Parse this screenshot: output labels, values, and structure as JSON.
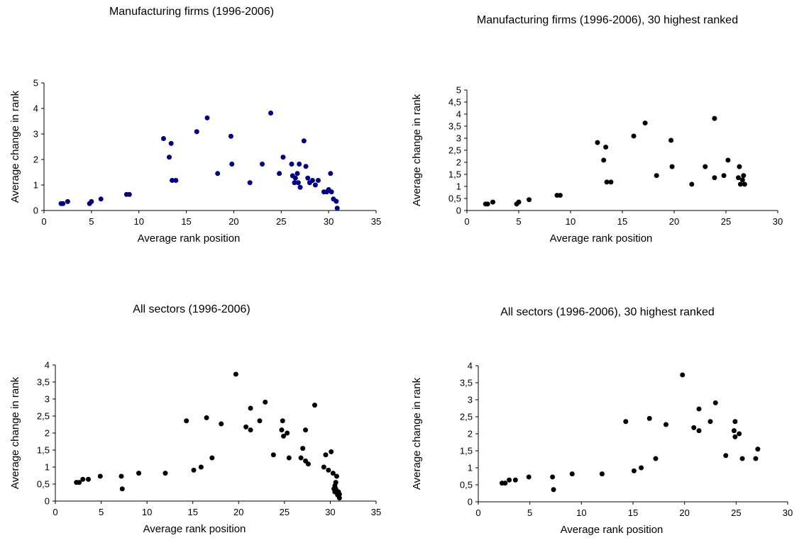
{
  "chart_data": [
    {
      "type": "scatter",
      "title": "Manufacturing firms (1996-2006)",
      "xlabel": "Average rank position",
      "ylabel": "Average change in rank",
      "xlim": [
        0,
        35
      ],
      "ylim": [
        0,
        5
      ],
      "xticks": [
        "0",
        "5",
        "10",
        "15",
        "20",
        "25",
        "30",
        "35"
      ],
      "yticks": [
        "0",
        "1",
        "2",
        "3",
        "4",
        "5"
      ],
      "grid": false,
      "marker_color": "#000080",
      "points": [
        [
          1.8,
          0.27
        ],
        [
          2.0,
          0.27
        ],
        [
          2.5,
          0.35
        ],
        [
          4.8,
          0.27
        ],
        [
          5.0,
          0.35
        ],
        [
          6.0,
          0.45
        ],
        [
          8.7,
          0.63
        ],
        [
          9.0,
          0.63
        ],
        [
          12.6,
          2.82
        ],
        [
          13.2,
          2.09
        ],
        [
          13.4,
          2.63
        ],
        [
          13.5,
          1.18
        ],
        [
          13.9,
          1.18
        ],
        [
          16.1,
          3.09
        ],
        [
          17.2,
          3.63
        ],
        [
          18.3,
          1.45
        ],
        [
          19.7,
          2.91
        ],
        [
          19.8,
          1.82
        ],
        [
          21.7,
          1.09
        ],
        [
          23.0,
          1.82
        ],
        [
          23.9,
          3.82
        ],
        [
          24.8,
          1.45
        ],
        [
          25.2,
          2.09
        ],
        [
          26.1,
          1.82
        ],
        [
          26.2,
          1.36
        ],
        [
          26.4,
          1.09
        ],
        [
          26.5,
          1.27
        ],
        [
          26.7,
          1.45
        ],
        [
          26.8,
          1.09
        ],
        [
          26.9,
          1.82
        ],
        [
          27.0,
          0.91
        ],
        [
          27.4,
          2.73
        ],
        [
          27.6,
          1.73
        ],
        [
          27.8,
          1.27
        ],
        [
          28.0,
          1.09
        ],
        [
          28.3,
          1.18
        ],
        [
          28.6,
          1.0
        ],
        [
          28.9,
          1.18
        ],
        [
          29.5,
          0.73
        ],
        [
          29.8,
          0.73
        ],
        [
          30.0,
          0.82
        ],
        [
          30.2,
          1.45
        ],
        [
          30.3,
          0.73
        ],
        [
          30.5,
          0.45
        ],
        [
          30.8,
          0.36
        ],
        [
          30.9,
          0.09
        ]
      ]
    },
    {
      "type": "scatter",
      "title": "Manufacturing firms (1996-2006), 30 highest ranked",
      "xlabel": "Average rank position",
      "ylabel": "Average change in rank",
      "xlim": [
        0,
        30
      ],
      "ylim": [
        0,
        5
      ],
      "xticks": [
        "0",
        "5",
        "10",
        "15",
        "20",
        "25",
        "30"
      ],
      "yticks": [
        "0",
        "0,5",
        "1",
        "1,5",
        "2",
        "2,5",
        "3",
        "3,5",
        "4",
        "4,5",
        "5"
      ],
      "grid": false,
      "marker_color": "#000000",
      "points": [
        [
          1.8,
          0.27
        ],
        [
          2.0,
          0.27
        ],
        [
          2.5,
          0.35
        ],
        [
          4.8,
          0.27
        ],
        [
          5.0,
          0.35
        ],
        [
          6.0,
          0.45
        ],
        [
          8.7,
          0.63
        ],
        [
          9.0,
          0.63
        ],
        [
          12.6,
          2.82
        ],
        [
          13.2,
          2.09
        ],
        [
          13.4,
          2.63
        ],
        [
          13.5,
          1.18
        ],
        [
          13.9,
          1.18
        ],
        [
          16.1,
          3.09
        ],
        [
          17.2,
          3.63
        ],
        [
          18.3,
          1.45
        ],
        [
          19.7,
          2.91
        ],
        [
          19.8,
          1.82
        ],
        [
          21.7,
          1.09
        ],
        [
          23.0,
          1.82
        ],
        [
          23.9,
          3.82
        ],
        [
          23.9,
          1.36
        ],
        [
          24.8,
          1.45
        ],
        [
          25.2,
          2.09
        ],
        [
          26.2,
          1.36
        ],
        [
          26.3,
          1.82
        ],
        [
          26.4,
          1.09
        ],
        [
          26.6,
          1.27
        ],
        [
          26.7,
          1.45
        ],
        [
          26.8,
          1.09
        ]
      ]
    },
    {
      "type": "scatter",
      "title": "All sectors (1996-2006)",
      "xlabel": "Average rank position",
      "ylabel": "Average change in rank",
      "xlim": [
        0,
        35
      ],
      "ylim": [
        0,
        4
      ],
      "xticks": [
        "0",
        "5",
        "10",
        "15",
        "20",
        "25",
        "30",
        "35"
      ],
      "yticks": [
        "0",
        "0,5",
        "1",
        "1,5",
        "2",
        "2,5",
        "3",
        "3,5",
        "4"
      ],
      "grid": false,
      "marker_color": "#000000",
      "points": [
        [
          2.3,
          0.55
        ],
        [
          2.6,
          0.55
        ],
        [
          3.0,
          0.64
        ],
        [
          3.6,
          0.64
        ],
        [
          4.9,
          0.73
        ],
        [
          7.2,
          0.73
        ],
        [
          7.3,
          0.36
        ],
        [
          9.1,
          0.82
        ],
        [
          12.0,
          0.82
        ],
        [
          14.3,
          2.36
        ],
        [
          15.1,
          0.91
        ],
        [
          15.9,
          1.0
        ],
        [
          16.5,
          2.45
        ],
        [
          17.1,
          1.27
        ],
        [
          18.1,
          2.27
        ],
        [
          19.7,
          3.73
        ],
        [
          20.8,
          2.18
        ],
        [
          21.3,
          2.09
        ],
        [
          21.3,
          2.73
        ],
        [
          22.3,
          2.36
        ],
        [
          22.9,
          2.91
        ],
        [
          23.8,
          1.36
        ],
        [
          24.7,
          2.09
        ],
        [
          24.8,
          2.36
        ],
        [
          24.9,
          1.91
        ],
        [
          25.3,
          2.0
        ],
        [
          25.5,
          1.27
        ],
        [
          26.8,
          1.27
        ],
        [
          27.0,
          1.55
        ],
        [
          27.3,
          2.09
        ],
        [
          27.3,
          1.18
        ],
        [
          27.6,
          1.09
        ],
        [
          28.3,
          2.82
        ],
        [
          29.3,
          1.0
        ],
        [
          29.5,
          1.36
        ],
        [
          29.8,
          0.91
        ],
        [
          30.1,
          1.45
        ],
        [
          30.3,
          0.82
        ],
        [
          30.4,
          0.36
        ],
        [
          30.5,
          0.45
        ],
        [
          30.5,
          0.27
        ],
        [
          30.6,
          0.55
        ],
        [
          30.6,
          0.36
        ],
        [
          30.7,
          0.73
        ],
        [
          30.8,
          0.18
        ],
        [
          30.9,
          0.27
        ],
        [
          31.0,
          0.09
        ],
        [
          31.0,
          0.2
        ]
      ]
    },
    {
      "type": "scatter",
      "title": "All sectors (1996-2006), 30 highest ranked",
      "xlabel": "Average rank position",
      "ylabel": "Average change in rank",
      "xlim": [
        0,
        30
      ],
      "ylim": [
        0,
        4
      ],
      "xticks": [
        "0",
        "5",
        "10",
        "15",
        "20",
        "25",
        "30"
      ],
      "yticks": [
        "0",
        "0,5",
        "1",
        "1,5",
        "2",
        "2,5",
        "3",
        "3,5",
        "4"
      ],
      "grid": false,
      "marker_color": "#000000",
      "points": [
        [
          2.3,
          0.55
        ],
        [
          2.6,
          0.55
        ],
        [
          3.0,
          0.64
        ],
        [
          3.6,
          0.64
        ],
        [
          4.9,
          0.73
        ],
        [
          7.2,
          0.73
        ],
        [
          7.3,
          0.36
        ],
        [
          9.1,
          0.82
        ],
        [
          12.0,
          0.82
        ],
        [
          14.3,
          2.36
        ],
        [
          15.1,
          0.91
        ],
        [
          15.8,
          1.0
        ],
        [
          16.6,
          2.45
        ],
        [
          17.2,
          1.27
        ],
        [
          18.2,
          2.27
        ],
        [
          19.8,
          3.73
        ],
        [
          20.9,
          2.18
        ],
        [
          21.4,
          2.09
        ],
        [
          21.4,
          2.73
        ],
        [
          22.5,
          2.36
        ],
        [
          23.0,
          2.91
        ],
        [
          24.0,
          1.36
        ],
        [
          24.8,
          2.09
        ],
        [
          24.9,
          2.36
        ],
        [
          24.9,
          1.91
        ],
        [
          25.3,
          2.0
        ],
        [
          25.6,
          1.27
        ],
        [
          26.9,
          1.27
        ],
        [
          27.1,
          1.55
        ]
      ]
    }
  ]
}
